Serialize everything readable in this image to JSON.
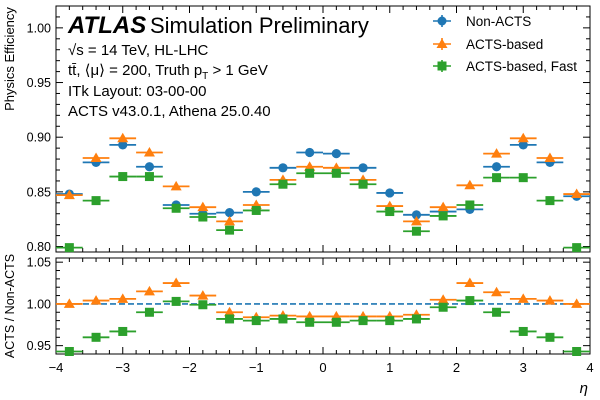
{
  "chart_data": [
    {
      "type": "scatter",
      "panel": "top",
      "ylabel": "Physics Efficiency",
      "ylim": [
        0.795,
        1.02
      ],
      "xlim": [
        -4,
        4
      ],
      "yticks": [
        0.8,
        0.85,
        0.9,
        0.95,
        1.0
      ],
      "ytick_labels": [
        "0.80",
        "0.85",
        "0.90",
        "0.95",
        "1.00"
      ],
      "x_bin_edges": [
        -4.0,
        -3.6,
        -3.2,
        -2.8,
        -2.4,
        -2.0,
        -1.6,
        -1.2,
        -0.8,
        -0.4,
        0.0,
        0.4,
        0.8,
        1.2,
        1.6,
        2.0,
        2.4,
        2.8,
        3.2,
        3.6,
        4.0
      ],
      "x": [
        -3.8,
        -3.4,
        -3.0,
        -2.6,
        -2.2,
        -1.8,
        -1.4,
        -1.0,
        -0.6,
        -0.2,
        0.2,
        0.6,
        1.0,
        1.4,
        1.8,
        2.2,
        2.6,
        3.0,
        3.4,
        3.8
      ],
      "series": [
        {
          "name": "Non-ACTS",
          "color": "#1f77b4",
          "marker": "circle",
          "values": [
            0.848,
            0.877,
            0.893,
            0.873,
            0.838,
            0.83,
            0.831,
            0.85,
            0.872,
            0.886,
            0.885,
            0.872,
            0.849,
            0.829,
            0.832,
            0.834,
            0.873,
            0.893,
            0.877,
            0.846
          ]
        },
        {
          "name": "ACTS-based",
          "color": "#ff7f0e",
          "marker": "triangle",
          "values": [
            0.847,
            0.881,
            0.899,
            0.886,
            0.855,
            0.836,
            0.823,
            0.838,
            0.861,
            0.873,
            0.872,
            0.861,
            0.837,
            0.823,
            0.836,
            0.856,
            0.885,
            0.899,
            0.881,
            0.848
          ]
        },
        {
          "name": "ACTS-based, Fast",
          "color": "#2ca02c",
          "marker": "square",
          "values": [
            0.799,
            0.842,
            0.864,
            0.864,
            0.835,
            0.827,
            0.815,
            0.833,
            0.857,
            0.867,
            0.867,
            0.857,
            0.832,
            0.814,
            0.828,
            0.838,
            0.863,
            0.863,
            0.842,
            0.799
          ]
        }
      ]
    },
    {
      "type": "scatter",
      "panel": "ratio",
      "xlabel": "η",
      "ylabel": "ACTS / Non-ACTS",
      "ylim": [
        0.94,
        1.055
      ],
      "xlim": [
        -4,
        4
      ],
      "xticks": [
        -4,
        -3,
        -2,
        -1,
        0,
        1,
        2,
        3,
        4
      ],
      "xtick_labels": [
        "−4",
        "−3",
        "−2",
        "−1",
        "0",
        "1",
        "2",
        "3",
        "4"
      ],
      "yticks": [
        0.95,
        1.0,
        1.05
      ],
      "ytick_labels": [
        "0.95",
        "1.00",
        "1.05"
      ],
      "reference_line": 1.0,
      "series": [
        {
          "name": "ACTS-based",
          "color": "#ff7f0e",
          "marker": "triangle",
          "values": [
            1.0,
            1.004,
            1.006,
            1.015,
            1.025,
            1.01,
            0.99,
            0.984,
            0.986,
            0.985,
            0.985,
            0.985,
            0.985,
            0.987,
            1.005,
            1.025,
            1.014,
            1.006,
            1.004,
            1.0
          ]
        },
        {
          "name": "ACTS-based, Fast",
          "color": "#2ca02c",
          "marker": "square",
          "values": [
            0.943,
            0.96,
            0.967,
            0.99,
            1.003,
            0.999,
            0.982,
            0.98,
            0.982,
            0.978,
            0.978,
            0.98,
            0.98,
            0.982,
            0.996,
            1.004,
            0.99,
            0.967,
            0.96,
            0.943
          ]
        }
      ]
    }
  ],
  "labels": {
    "atlas": "ATLAS",
    "status": "Simulation Preliminary",
    "energy": "√s = 14 TeV, HL-LHC",
    "sample": "tt̄, ⟨μ⟩ = 200, Truth p",
    "sample_sub": "T",
    "sample_cut": " > 1 GeV",
    "layout": "ITk Layout: 03-00-00",
    "software": "ACTS v43.0.1, Athena 25.0.40"
  },
  "legend": {
    "placement": "top-right",
    "entries": [
      "Non-ACTS",
      "ACTS-based",
      "ACTS-based, Fast"
    ]
  }
}
